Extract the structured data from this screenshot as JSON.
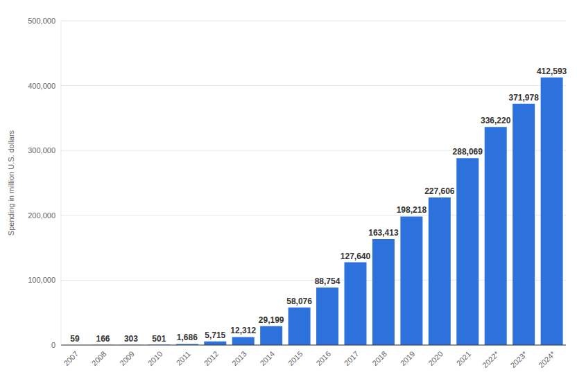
{
  "chart_data": {
    "type": "bar",
    "y_label": "Spending in million U.S. dollars",
    "categories": [
      "2007",
      "2008",
      "2009",
      "2010",
      "2011",
      "2012",
      "2013",
      "2014",
      "2015",
      "2016",
      "2017",
      "2018",
      "2019",
      "2020",
      "2021",
      "2022*",
      "2023*",
      "2024*"
    ],
    "values": [
      59,
      166,
      303,
      501,
      1686,
      5715,
      12312,
      29199,
      58076,
      88754,
      127640,
      163413,
      198218,
      227606,
      288069,
      336220,
      371978,
      412593
    ],
    "value_labels": [
      "59",
      "166",
      "303",
      "501",
      "1,686",
      "5,715",
      "12,312",
      "29,199",
      "58,076",
      "88,754",
      "127,640",
      "163,413",
      "198,218",
      "227,606",
      "288,069",
      "336,220",
      "371,978",
      "412,593"
    ],
    "color": "#2d72dc",
    "ylim": [
      0,
      500000
    ],
    "yticks": [
      0,
      {
        "value": 100000,
        "label": "100,000"
      },
      {
        "value": 200000,
        "label": "200,000"
      },
      {
        "value": 300000,
        "label": "300,000"
      },
      {
        "value": 400000,
        "label": "400,000"
      },
      {
        "value": 500000,
        "label": "500,000"
      }
    ],
    "grid": true,
    "data_labels": true
  }
}
